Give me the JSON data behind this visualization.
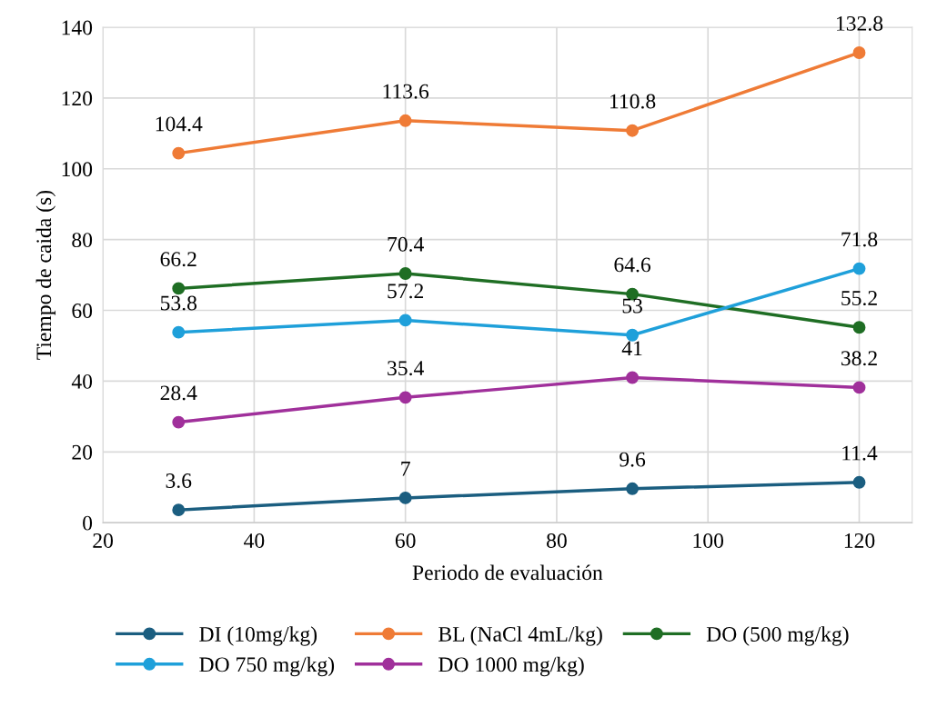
{
  "chart_data": {
    "type": "line",
    "xlabel": "Periodo de evaluación",
    "ylabel": "Tiempo de caida (s)",
    "x": [
      30,
      60,
      90,
      120
    ],
    "series": [
      {
        "name": "DI (10mg/kg)",
        "color": "#1b5e80",
        "values": [
          3.6,
          7,
          9.6,
          11.4
        ]
      },
      {
        "name": "BL (NaCl 4mL/kg)",
        "color": "#ef7b36",
        "values": [
          104.4,
          113.6,
          110.8,
          132.8
        ]
      },
      {
        "name": "DO (500 mg/kg)",
        "color": "#1f6e24",
        "values": [
          66.2,
          70.4,
          64.6,
          55.2
        ]
      },
      {
        "name": "DO 750 mg/kg)",
        "color": "#1fa0da",
        "values": [
          53.8,
          57.2,
          53,
          71.8
        ]
      },
      {
        "name": "DO 1000 mg/kg)",
        "color": "#a0309b",
        "values": [
          28.4,
          35.4,
          41,
          38.2
        ]
      }
    ],
    "xlim": [
      20,
      127
    ],
    "xticks": [
      20,
      40,
      60,
      80,
      100,
      120
    ],
    "ylim": [
      0,
      140
    ],
    "yticks": [
      0,
      20,
      40,
      60,
      80,
      100,
      120,
      140
    ],
    "grid": true,
    "legend": "bottom",
    "marker": "circle",
    "line_style": "solid",
    "data_labels": true
  }
}
